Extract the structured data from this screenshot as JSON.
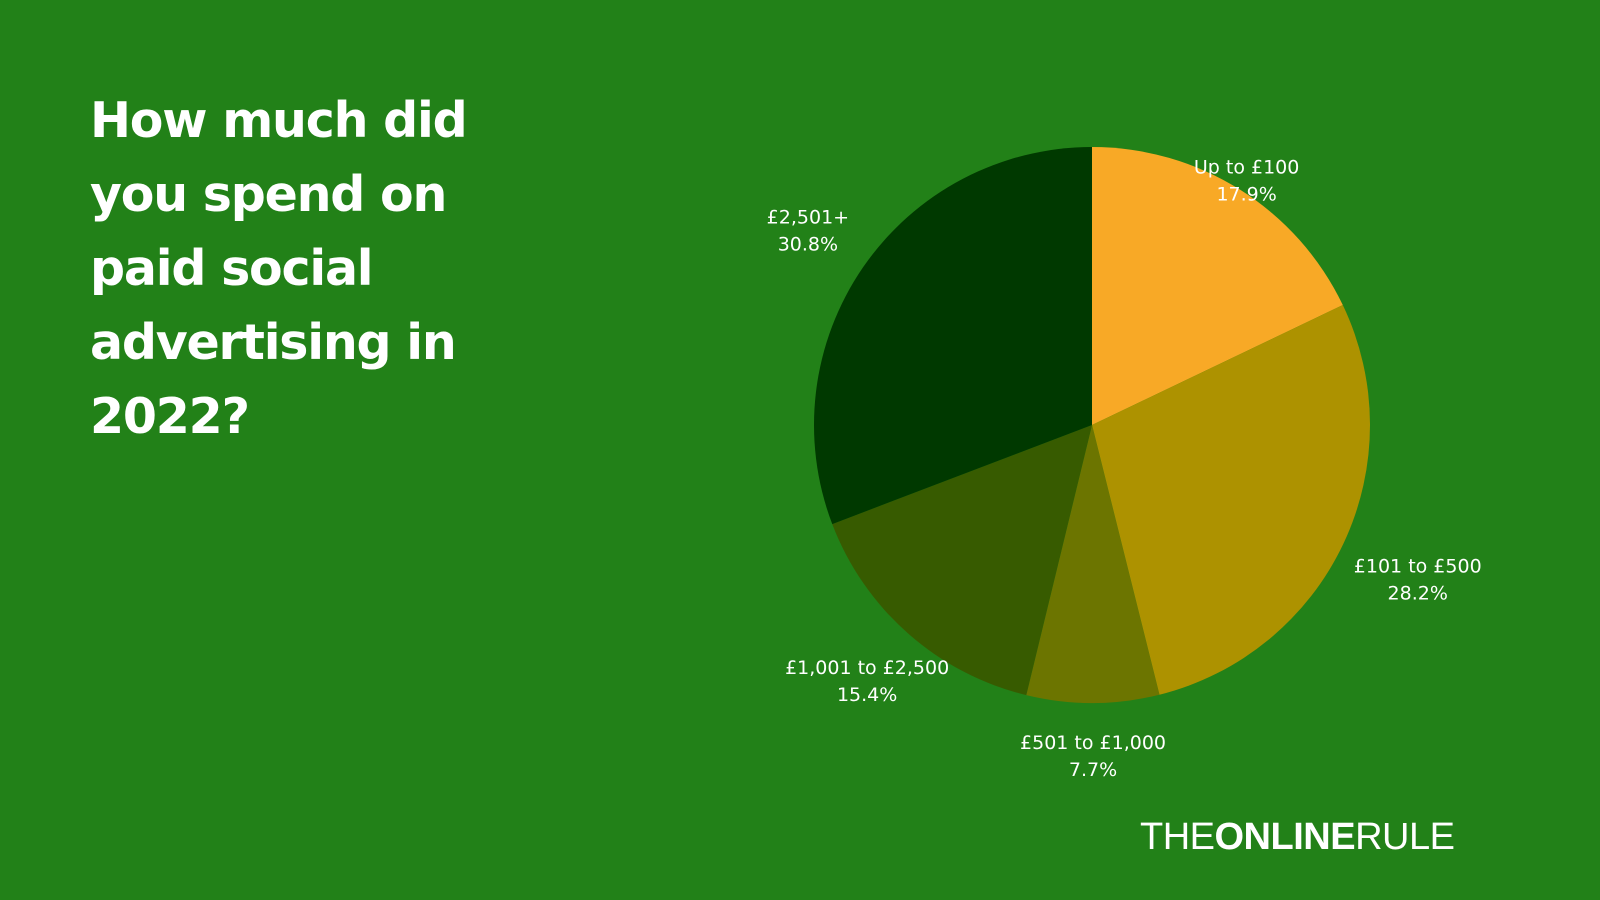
{
  "title": "How much did you spend on paid social advertising in 2022?",
  "logo": {
    "part1": "THE",
    "part2": "ONLINE",
    "part3": "RULE"
  },
  "colors": {
    "background": "#228118",
    "text": "#ffffff"
  },
  "chart_data": {
    "type": "pie",
    "title": "How much did you spend on paid social advertising in 2022?",
    "slices": [
      {
        "label": "Up to £100",
        "value": 17.9,
        "display": "17.9%",
        "color": "#f8a926"
      },
      {
        "label": "£101 to £500",
        "value": 28.2,
        "display": "28.2%",
        "color": "#ad9200"
      },
      {
        "label": "£501 to £1,000",
        "value": 7.7,
        "display": "7.7%",
        "color": "#6c7500"
      },
      {
        "label": "£1,001 to £2,500",
        "value": 15.4,
        "display": "15.4%",
        "color": "#375b00"
      },
      {
        "label": "£2,501+",
        "value": 30.8,
        "display": "30.8%",
        "color": "#003900"
      }
    ],
    "start_angle": "12 o'clock",
    "direction": "clockwise",
    "legend": "none"
  }
}
